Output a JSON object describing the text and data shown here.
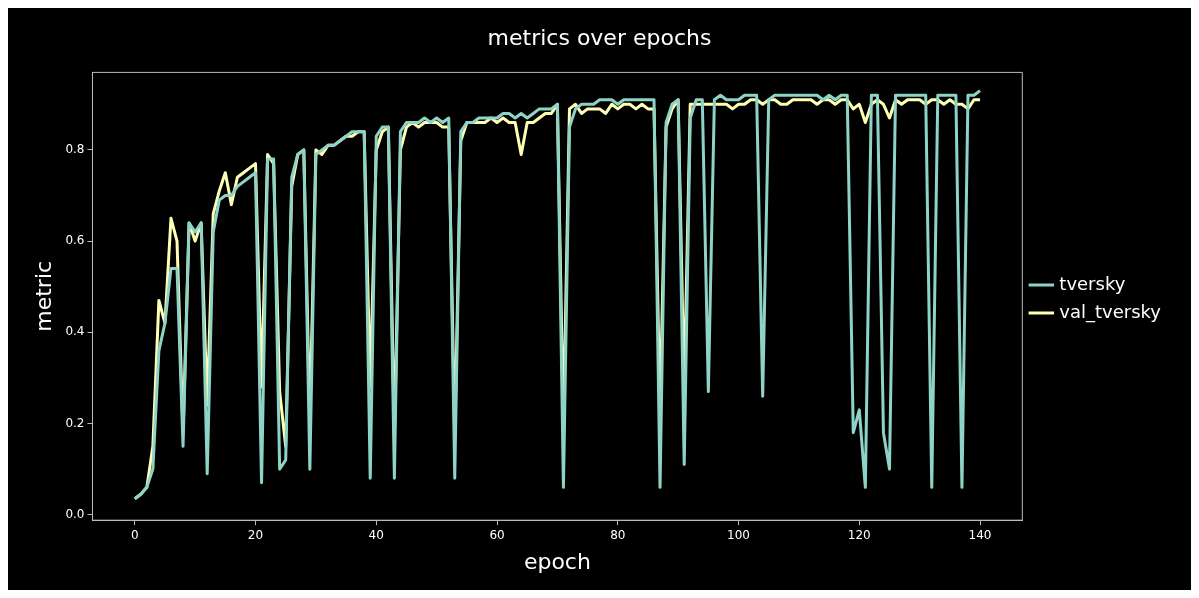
{
  "chart_data": {
    "type": "line",
    "title": "metrics over epochs",
    "xlabel": "epoch",
    "ylabel": "metric",
    "x": [
      0,
      1,
      2,
      3,
      4,
      5,
      6,
      7,
      8,
      9,
      10,
      11,
      12,
      13,
      14,
      15,
      16,
      17,
      18,
      19,
      20,
      21,
      22,
      23,
      24,
      25,
      26,
      27,
      28,
      29,
      30,
      31,
      32,
      33,
      34,
      35,
      36,
      37,
      38,
      39,
      40,
      41,
      42,
      43,
      44,
      45,
      46,
      47,
      48,
      49,
      50,
      51,
      52,
      53,
      54,
      55,
      56,
      57,
      58,
      59,
      60,
      61,
      62,
      63,
      64,
      65,
      66,
      67,
      68,
      69,
      70,
      71,
      72,
      73,
      74,
      75,
      76,
      77,
      78,
      79,
      80,
      81,
      82,
      83,
      84,
      85,
      86,
      87,
      88,
      89,
      90,
      91,
      92,
      93,
      94,
      95,
      96,
      97,
      98,
      99,
      100,
      101,
      102,
      103,
      104,
      105,
      106,
      107,
      108,
      109,
      110,
      111,
      112,
      113,
      114,
      115,
      116,
      117,
      118,
      119,
      120,
      121,
      122,
      123,
      124,
      125,
      126,
      127,
      128,
      129,
      130,
      131,
      132,
      133,
      134,
      135,
      136,
      137,
      138,
      139,
      140
    ],
    "series": [
      {
        "name": "tversky",
        "color": "#8dd3c7",
        "values": [
          0.035,
          0.045,
          0.06,
          0.1,
          0.36,
          0.42,
          0.54,
          0.54,
          0.15,
          0.64,
          0.62,
          0.64,
          0.09,
          0.62,
          0.69,
          0.7,
          0.7,
          0.72,
          0.73,
          0.74,
          0.75,
          0.07,
          0.78,
          0.78,
          0.1,
          0.12,
          0.74,
          0.79,
          0.8,
          0.1,
          0.79,
          0.8,
          0.81,
          0.81,
          0.82,
          0.83,
          0.84,
          0.84,
          0.84,
          0.08,
          0.83,
          0.85,
          0.85,
          0.08,
          0.84,
          0.86,
          0.86,
          0.86,
          0.87,
          0.86,
          0.87,
          0.86,
          0.87,
          0.08,
          0.84,
          0.86,
          0.86,
          0.87,
          0.87,
          0.87,
          0.87,
          0.88,
          0.88,
          0.87,
          0.88,
          0.87,
          0.88,
          0.89,
          0.89,
          0.89,
          0.9,
          0.06,
          0.85,
          0.89,
          0.9,
          0.9,
          0.9,
          0.91,
          0.91,
          0.91,
          0.9,
          0.91,
          0.91,
          0.91,
          0.91,
          0.91,
          0.91,
          0.06,
          0.86,
          0.9,
          0.91,
          0.11,
          0.87,
          0.91,
          0.91,
          0.27,
          0.91,
          0.92,
          0.91,
          0.91,
          0.91,
          0.92,
          0.92,
          0.92,
          0.26,
          0.91,
          0.92,
          0.92,
          0.92,
          0.92,
          0.92,
          0.92,
          0.92,
          0.92,
          0.91,
          0.92,
          0.91,
          0.92,
          0.92,
          0.18,
          0.23,
          0.06,
          0.92,
          0.92,
          0.18,
          0.1,
          0.92,
          0.92,
          0.92,
          0.92,
          0.92,
          0.92,
          0.06,
          0.92,
          0.92,
          0.92,
          0.92,
          0.06,
          0.92,
          0.92,
          0.93
        ]
      },
      {
        "name": "val_tversky",
        "color": "#ffffb3",
        "values": [
          0.035,
          0.045,
          0.06,
          0.15,
          0.47,
          0.42,
          0.65,
          0.6,
          0.18,
          0.64,
          0.6,
          0.64,
          0.24,
          0.66,
          0.71,
          0.75,
          0.68,
          0.74,
          0.75,
          0.76,
          0.77,
          0.28,
          0.79,
          0.77,
          0.27,
          0.15,
          0.72,
          0.79,
          0.8,
          0.2,
          0.8,
          0.79,
          0.81,
          0.81,
          0.82,
          0.83,
          0.83,
          0.84,
          0.84,
          0.28,
          0.8,
          0.84,
          0.85,
          0.17,
          0.8,
          0.85,
          0.86,
          0.85,
          0.86,
          0.86,
          0.86,
          0.85,
          0.85,
          0.17,
          0.82,
          0.86,
          0.86,
          0.86,
          0.86,
          0.87,
          0.86,
          0.87,
          0.86,
          0.86,
          0.79,
          0.86,
          0.86,
          0.87,
          0.88,
          0.88,
          0.9,
          0.19,
          0.89,
          0.9,
          0.88,
          0.89,
          0.89,
          0.89,
          0.88,
          0.9,
          0.89,
          0.9,
          0.9,
          0.89,
          0.9,
          0.89,
          0.89,
          0.22,
          0.85,
          0.89,
          0.91,
          0.27,
          0.9,
          0.9,
          0.9,
          0.9,
          0.9,
          0.9,
          0.9,
          0.89,
          0.9,
          0.9,
          0.91,
          0.91,
          0.9,
          0.91,
          0.91,
          0.9,
          0.9,
          0.91,
          0.91,
          0.91,
          0.91,
          0.9,
          0.91,
          0.91,
          0.9,
          0.91,
          0.91,
          0.89,
          0.9,
          0.86,
          0.9,
          0.91,
          0.9,
          0.87,
          0.91,
          0.9,
          0.91,
          0.91,
          0.91,
          0.9,
          0.91,
          0.91,
          0.9,
          0.91,
          0.9,
          0.9,
          0.89,
          0.91,
          0.91
        ]
      }
    ],
    "xlim": [
      -7,
      147
    ],
    "xticks": [
      0,
      20,
      40,
      60,
      80,
      100,
      120,
      140
    ],
    "ylim": [
      -0.012,
      0.97
    ],
    "yticks": [
      {
        "value": 0,
        "label": "0.0"
      },
      {
        "value": 0.2,
        "label": "0.2"
      },
      {
        "value": 0.4,
        "label": "0.4"
      },
      {
        "value": 0.6,
        "label": "0.6"
      },
      {
        "value": 0.8,
        "label": "0.8"
      }
    ],
    "legend": "center right",
    "grid": false,
    "marker": "none",
    "line_style": "solid"
  }
}
